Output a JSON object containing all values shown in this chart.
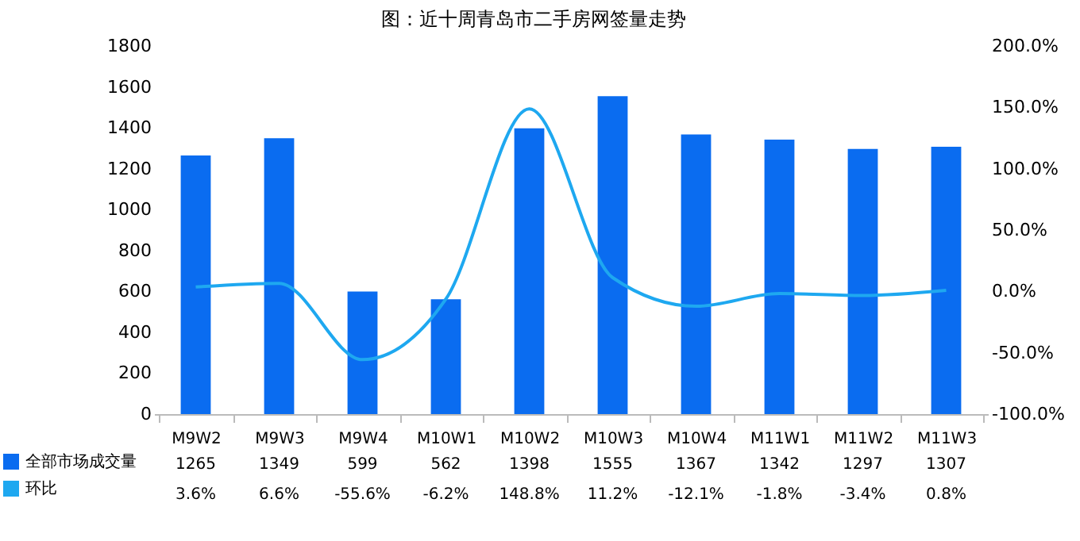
{
  "chart_data": {
    "type": "bar",
    "title": "图：近十周青岛市二手房网签量走势",
    "categories": [
      "M9W2",
      "M9W3",
      "M9W4",
      "M10W1",
      "M10W2",
      "M10W3",
      "M10W4",
      "M11W1",
      "M11W2",
      "M11W3"
    ],
    "series": [
      {
        "name": "全部市场成交量",
        "color": "#0a6cf0",
        "values": [
          1265,
          1349,
          599,
          562,
          1398,
          1555,
          1367,
          1342,
          1297,
          1307
        ],
        "value_labels": [
          "1265",
          "1349",
          "599",
          "562",
          "1398",
          "1555",
          "1367",
          "1342",
          "1297",
          "1307"
        ]
      },
      {
        "name": "环比",
        "type": "line",
        "axis": "y2",
        "color": "#1ea8f0",
        "values": [
          3.6,
          6.6,
          -55.6,
          -6.2,
          148.8,
          11.2,
          -12.1,
          -1.8,
          -3.4,
          0.8
        ],
        "value_labels": [
          "3.6%",
          "6.6%",
          "-55.6%",
          "-6.2%",
          "148.8%",
          "11.2%",
          "-12.1%",
          "-1.8%",
          "-3.4%",
          "0.8%"
        ]
      }
    ],
    "ylim": [
      0,
      1800
    ],
    "yticks": [
      0,
      200,
      400,
      600,
      800,
      1000,
      1200,
      1400,
      1600,
      1800
    ],
    "y2lim": [
      -100,
      200
    ],
    "y2ticks": [
      {
        "value": -100,
        "label": "-100.0%"
      },
      {
        "value": -50,
        "label": "-50.0%"
      },
      {
        "value": 0,
        "label": "0.0%"
      },
      {
        "value": 50,
        "label": "50.0%"
      },
      {
        "value": 100,
        "label": "100.0%"
      },
      {
        "value": 150,
        "label": "150.0%"
      },
      {
        "value": 200,
        "label": "200.0%"
      }
    ],
    "grid": false,
    "legend": "bottom left",
    "line_style": "solid",
    "marker": "none"
  }
}
